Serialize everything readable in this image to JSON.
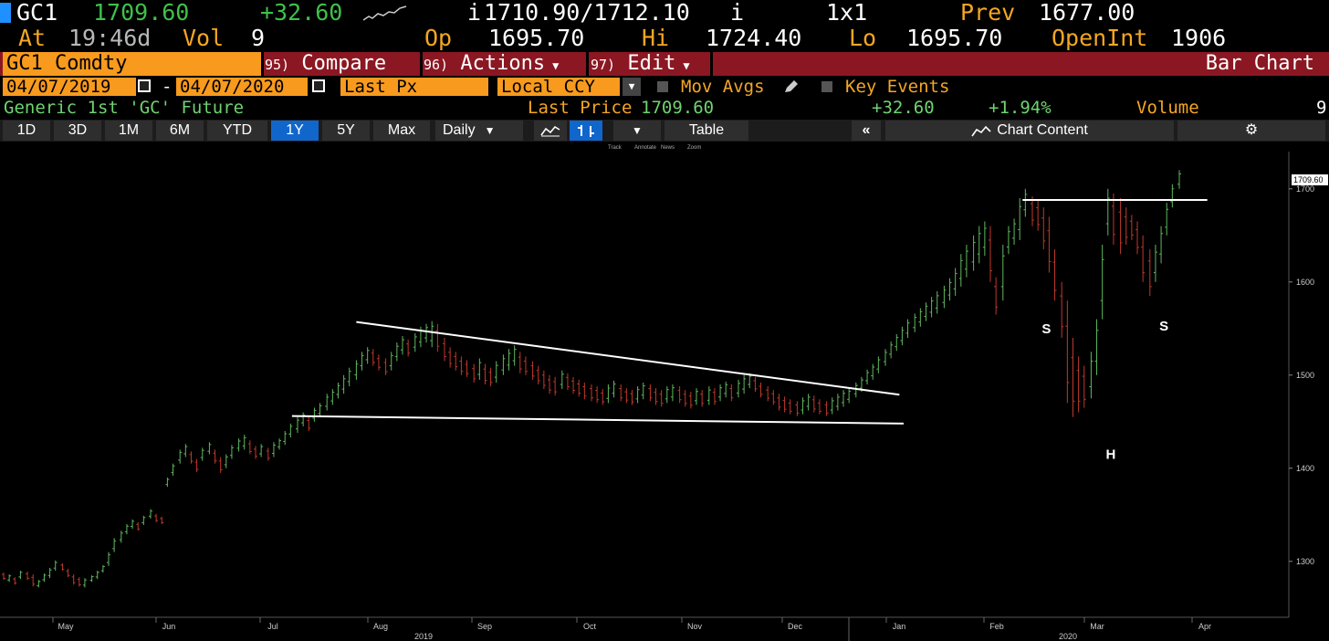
{
  "header": {
    "ticker": "GC1",
    "last": "1709.60",
    "change": "+32.60",
    "bid_ask": "1710.90/1712.10",
    "bid_prefix": "i",
    "ask_suffix": "i",
    "size": "1x1",
    "prev_label": "Prev",
    "prev_value": "1677.00",
    "at_label": "At",
    "time": "19:46d",
    "vol_label": "Vol",
    "vol_value": "9",
    "open_label": "Op",
    "open_value": "1695.70",
    "high_label": "Hi",
    "high_value": "1724.40",
    "low_label": "Lo",
    "low_value": "1695.70",
    "oi_label": "OpenInt",
    "oi_value": "1906"
  },
  "menubar": {
    "security": "GC1 Comdty",
    "compare_num": "95)",
    "compare": "Compare",
    "actions_num": "96)",
    "actions": "Actions",
    "edit_num": "97)",
    "edit": "Edit",
    "title": "Bar Chart"
  },
  "settings": {
    "start_date": "04/07/2019",
    "dash": "-",
    "end_date": "04/07/2020",
    "field": "Last Px",
    "currency": "Local CCY",
    "mov_avgs": "Mov Avgs",
    "key_events": "Key Events"
  },
  "info": {
    "name": "Generic 1st 'GC' Future",
    "last_price_label": "Last Price",
    "last_price": "1709.60",
    "change": "+32.60",
    "pct": "+1.94%",
    "volume_label": "Volume",
    "volume": "9"
  },
  "toolbar": {
    "ranges": [
      "1D",
      "3D",
      "1M",
      "6M",
      "YTD",
      "1Y",
      "5Y",
      "Max"
    ],
    "selected_range": "1Y",
    "period": "Daily",
    "table": "Table",
    "chart_content": "Chart Content",
    "mini_tools": [
      "Track",
      "Annotate",
      "News",
      "Zoom"
    ]
  },
  "colors": {
    "up": "#5fb85f",
    "down": "#c0392b",
    "accent": "#f79a1e",
    "menu": "#8b1722",
    "selected": "#1166cc"
  },
  "chart_data": {
    "type": "bar",
    "title": "",
    "ylim": [
      1240,
      1740
    ],
    "y_ticks": [
      1300,
      1400,
      1500,
      1600,
      1700
    ],
    "last_label": "1709.60",
    "x_months": [
      "May",
      "Jun",
      "Jul",
      "Aug",
      "Sep",
      "Oct",
      "Nov",
      "Dec",
      "Jan",
      "Feb",
      "Mar",
      "Apr"
    ],
    "x_years": [
      "2019",
      "2020"
    ],
    "annotations": [
      "S",
      "H",
      "S"
    ],
    "bars": [
      [
        0,
        1288,
        1280,
        0
      ],
      [
        4,
        1286,
        1278,
        1
      ],
      [
        8,
        1283,
        1275,
        0
      ],
      [
        12,
        1290,
        1281,
        1
      ],
      [
        17,
        1289,
        1280,
        0
      ],
      [
        21,
        1286,
        1273,
        0
      ],
      [
        25,
        1280,
        1272,
        1
      ],
      [
        29,
        1287,
        1278,
        1
      ],
      [
        33,
        1293,
        1282,
        1
      ],
      [
        37,
        1301,
        1290,
        1
      ],
      [
        42,
        1298,
        1290,
        0
      ],
      [
        46,
        1292,
        1283,
        0
      ],
      [
        50,
        1286,
        1275,
        0
      ],
      [
        54,
        1283,
        1273,
        0
      ],
      [
        58,
        1282,
        1272,
        1
      ],
      [
        63,
        1285,
        1278,
        1
      ],
      [
        67,
        1290,
        1281,
        1
      ],
      [
        71,
        1296,
        1288,
        1
      ],
      [
        75,
        1310,
        1295,
        1
      ],
      [
        79,
        1325,
        1310,
        1
      ],
      [
        84,
        1333,
        1320,
        1
      ],
      [
        88,
        1340,
        1329,
        1
      ],
      [
        92,
        1345,
        1335,
        1
      ],
      [
        96,
        1342,
        1333,
        0
      ],
      [
        100,
        1349,
        1339,
        1
      ],
      [
        105,
        1356,
        1346,
        1
      ],
      [
        109,
        1351,
        1342,
        0
      ],
      [
        113,
        1348,
        1340,
        0
      ],
      [
        117,
        1390,
        1380,
        1
      ],
      [
        121,
        1405,
        1392,
        1
      ],
      [
        126,
        1420,
        1405,
        1
      ],
      [
        130,
        1426,
        1412,
        1
      ],
      [
        134,
        1418,
        1405,
        0
      ],
      [
        138,
        1410,
        1396,
        0
      ],
      [
        142,
        1422,
        1408,
        1
      ],
      [
        147,
        1428,
        1415,
        1
      ],
      [
        151,
        1420,
        1405,
        0
      ],
      [
        155,
        1412,
        1395,
        0
      ],
      [
        159,
        1415,
        1400,
        1
      ],
      [
        163,
        1425,
        1410,
        1
      ],
      [
        168,
        1432,
        1418,
        1
      ],
      [
        172,
        1436,
        1420,
        1
      ],
      [
        176,
        1430,
        1415,
        0
      ],
      [
        180,
        1424,
        1410,
        0
      ],
      [
        184,
        1426,
        1412,
        1
      ],
      [
        189,
        1422,
        1408,
        0
      ],
      [
        193,
        1428,
        1412,
        1
      ],
      [
        197,
        1432,
        1420,
        1
      ],
      [
        201,
        1440,
        1425,
        1
      ],
      [
        205,
        1448,
        1433,
        1
      ],
      [
        210,
        1455,
        1438,
        1
      ],
      [
        214,
        1460,
        1445,
        1
      ],
      [
        218,
        1455,
        1440,
        0
      ],
      [
        222,
        1465,
        1450,
        1
      ],
      [
        226,
        1470,
        1455,
        1
      ],
      [
        231,
        1480,
        1462,
        1
      ],
      [
        235,
        1485,
        1468,
        1
      ],
      [
        239,
        1492,
        1475,
        1
      ],
      [
        243,
        1500,
        1480,
        1
      ],
      [
        247,
        1508,
        1488,
        1
      ],
      [
        252,
        1516,
        1495,
        1
      ],
      [
        256,
        1525,
        1505,
        1
      ],
      [
        260,
        1530,
        1512,
        1
      ],
      [
        264,
        1528,
        1510,
        0
      ],
      [
        268,
        1522,
        1505,
        0
      ],
      [
        273,
        1518,
        1500,
        0
      ],
      [
        277,
        1525,
        1505,
        1
      ],
      [
        281,
        1535,
        1515,
        1
      ],
      [
        285,
        1542,
        1522,
        1
      ],
      [
        289,
        1538,
        1520,
        0
      ],
      [
        294,
        1545,
        1525,
        1
      ],
      [
        298,
        1552,
        1530,
        1
      ],
      [
        302,
        1555,
        1535,
        1
      ],
      [
        306,
        1558,
        1530,
        1
      ],
      [
        310,
        1555,
        1525,
        0
      ],
      [
        315,
        1540,
        1515,
        0
      ],
      [
        319,
        1530,
        1508,
        0
      ],
      [
        323,
        1525,
        1505,
        0
      ],
      [
        327,
        1520,
        1500,
        0
      ],
      [
        331,
        1516,
        1498,
        0
      ],
      [
        336,
        1512,
        1492,
        0
      ],
      [
        340,
        1518,
        1495,
        1
      ],
      [
        344,
        1512,
        1490,
        0
      ],
      [
        348,
        1508,
        1488,
        0
      ],
      [
        352,
        1515,
        1492,
        1
      ],
      [
        357,
        1522,
        1500,
        1
      ],
      [
        361,
        1528,
        1505,
        1
      ],
      [
        365,
        1532,
        1510,
        1
      ],
      [
        369,
        1525,
        1502,
        0
      ],
      [
        373,
        1520,
        1500,
        0
      ],
      [
        378,
        1515,
        1495,
        0
      ],
      [
        382,
        1510,
        1490,
        0
      ],
      [
        386,
        1505,
        1485,
        0
      ],
      [
        390,
        1500,
        1480,
        0
      ],
      [
        394,
        1498,
        1478,
        0
      ],
      [
        399,
        1505,
        1485,
        1
      ],
      [
        403,
        1502,
        1484,
        0
      ],
      [
        407,
        1498,
        1480,
        0
      ],
      [
        411,
        1495,
        1477,
        0
      ],
      [
        415,
        1492,
        1474,
        0
      ],
      [
        420,
        1490,
        1472,
        0
      ],
      [
        424,
        1488,
        1470,
        0
      ],
      [
        428,
        1485,
        1468,
        0
      ],
      [
        432,
        1490,
        1470,
        1
      ],
      [
        436,
        1494,
        1476,
        1
      ],
      [
        441,
        1490,
        1472,
        0
      ],
      [
        445,
        1486,
        1470,
        0
      ],
      [
        449,
        1484,
        1468,
        0
      ],
      [
        453,
        1488,
        1470,
        1
      ],
      [
        457,
        1492,
        1474,
        1
      ],
      [
        462,
        1490,
        1472,
        0
      ],
      [
        466,
        1486,
        1468,
        0
      ],
      [
        470,
        1484,
        1466,
        0
      ],
      [
        474,
        1488,
        1470,
        1
      ],
      [
        478,
        1490,
        1472,
        1
      ],
      [
        483,
        1488,
        1470,
        0
      ],
      [
        487,
        1484,
        1466,
        0
      ],
      [
        491,
        1482,
        1464,
        0
      ],
      [
        495,
        1486,
        1468,
        1
      ],
      [
        499,
        1484,
        1466,
        0
      ],
      [
        504,
        1488,
        1468,
        1
      ],
      [
        508,
        1486,
        1468,
        0
      ],
      [
        512,
        1490,
        1472,
        1
      ],
      [
        516,
        1493,
        1476,
        1
      ],
      [
        520,
        1490,
        1472,
        0
      ],
      [
        525,
        1495,
        1476,
        1
      ],
      [
        529,
        1500,
        1480,
        1
      ],
      [
        533,
        1502,
        1486,
        1
      ],
      [
        537,
        1498,
        1482,
        0
      ],
      [
        541,
        1492,
        1476,
        0
      ],
      [
        546,
        1488,
        1472,
        0
      ],
      [
        550,
        1484,
        1468,
        0
      ],
      [
        554,
        1480,
        1462,
        0
      ],
      [
        558,
        1477,
        1460,
        0
      ],
      [
        562,
        1474,
        1458,
        0
      ],
      [
        567,
        1472,
        1456,
        0
      ],
      [
        571,
        1476,
        1458,
        1
      ],
      [
        575,
        1480,
        1462,
        1
      ],
      [
        579,
        1478,
        1460,
        0
      ],
      [
        583,
        1474,
        1458,
        0
      ],
      [
        588,
        1472,
        1456,
        0
      ],
      [
        592,
        1476,
        1458,
        1
      ],
      [
        596,
        1480,
        1462,
        1
      ],
      [
        600,
        1484,
        1466,
        1
      ],
      [
        604,
        1486,
        1470,
        1
      ],
      [
        609,
        1492,
        1476,
        1
      ],
      [
        613,
        1498,
        1482,
        1
      ],
      [
        617,
        1506,
        1490,
        1
      ],
      [
        621,
        1512,
        1495,
        1
      ],
      [
        625,
        1520,
        1502,
        1
      ],
      [
        630,
        1528,
        1510,
        1
      ],
      [
        634,
        1536,
        1518,
        1
      ],
      [
        638,
        1544,
        1526,
        1
      ],
      [
        642,
        1552,
        1532,
        1
      ],
      [
        646,
        1560,
        1540,
        1
      ],
      [
        651,
        1566,
        1546,
        1
      ],
      [
        655,
        1572,
        1552,
        1
      ],
      [
        659,
        1578,
        1558,
        1
      ],
      [
        663,
        1584,
        1562,
        1
      ],
      [
        667,
        1590,
        1566,
        1
      ],
      [
        672,
        1596,
        1572,
        1
      ],
      [
        676,
        1604,
        1580,
        1
      ],
      [
        680,
        1615,
        1585,
        1
      ],
      [
        684,
        1630,
        1595,
        1
      ],
      [
        688,
        1640,
        1605,
        1
      ],
      [
        693,
        1650,
        1612,
        1
      ],
      [
        697,
        1660,
        1620,
        1
      ],
      [
        701,
        1665,
        1628,
        1
      ],
      [
        705,
        1660,
        1600,
        0
      ],
      [
        709,
        1605,
        1565,
        0
      ],
      [
        714,
        1640,
        1580,
        1
      ],
      [
        718,
        1660,
        1630,
        1
      ],
      [
        722,
        1668,
        1640,
        1
      ],
      [
        726,
        1690,
        1645,
        1
      ],
      [
        730,
        1700,
        1670,
        1
      ],
      [
        735,
        1692,
        1660,
        0
      ],
      [
        739,
        1688,
        1655,
        0
      ],
      [
        743,
        1680,
        1635,
        0
      ],
      [
        747,
        1670,
        1610,
        0
      ],
      [
        751,
        1635,
        1580,
        0
      ],
      [
        756,
        1600,
        1540,
        0
      ],
      [
        760,
        1580,
        1470,
        0
      ],
      [
        764,
        1540,
        1455,
        0
      ],
      [
        768,
        1520,
        1460,
        0
      ],
      [
        772,
        1510,
        1465,
        0
      ],
      [
        777,
        1525,
        1475,
        1
      ],
      [
        781,
        1560,
        1500,
        1
      ],
      [
        785,
        1640,
        1560,
        1
      ],
      [
        789,
        1700,
        1650,
        1
      ],
      [
        793,
        1695,
        1640,
        0
      ],
      [
        798,
        1690,
        1630,
        0
      ],
      [
        802,
        1680,
        1640,
        0
      ],
      [
        806,
        1672,
        1645,
        0
      ],
      [
        810,
        1665,
        1630,
        0
      ],
      [
        814,
        1650,
        1600,
        0
      ],
      [
        819,
        1635,
        1585,
        0
      ],
      [
        823,
        1640,
        1600,
        1
      ],
      [
        827,
        1660,
        1620,
        1
      ],
      [
        831,
        1685,
        1650,
        1
      ],
      [
        835,
        1705,
        1680,
        1
      ],
      [
        840,
        1720,
        1700,
        1
      ]
    ]
  }
}
